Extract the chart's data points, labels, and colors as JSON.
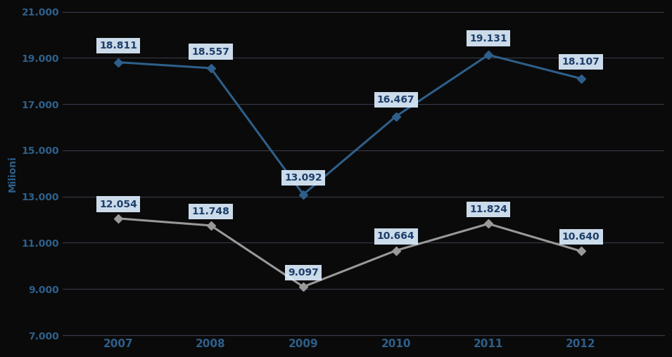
{
  "years": [
    2007,
    2008,
    2009,
    2010,
    2011,
    2012
  ],
  "series_blue": [
    18811,
    18557,
    13092,
    16467,
    19131,
    18107
  ],
  "series_gray": [
    12054,
    11748,
    9097,
    10664,
    11824,
    10640
  ],
  "series_blue_labels": [
    "18.811",
    "18.557",
    "13.092",
    "16.467",
    "19.131",
    "18.107"
  ],
  "series_gray_labels": [
    "12.054",
    "11.748",
    "9.097",
    "10.664",
    "11.824",
    "10.640"
  ],
  "blue_color": "#2E5F8A",
  "gray_color": "#999999",
  "bg_color": "#0A0A0A",
  "plot_bg_color": "#0A0A0A",
  "ylabel": "Milioni",
  "ylim": [
    7000,
    21000
  ],
  "yticks": [
    7000,
    9000,
    11000,
    13000,
    15000,
    17000,
    19000,
    21000
  ],
  "ytick_labels": [
    "7.000",
    "9.000",
    "11.000",
    "13.000",
    "15.000",
    "17.000",
    "19.000",
    "21.000"
  ],
  "grid_color": "#3a3a4a",
  "label_box_facecolor": "#DDEEFF",
  "label_text_color": "#1F3F6A",
  "axis_text_color": "#2E5F8A",
  "spine_color": "#3a3a4a",
  "blue_label_offsets_y": [
    500,
    500,
    500,
    500,
    500,
    500
  ],
  "gray_label_offsets_y": [
    400,
    400,
    400,
    400,
    400,
    400
  ]
}
